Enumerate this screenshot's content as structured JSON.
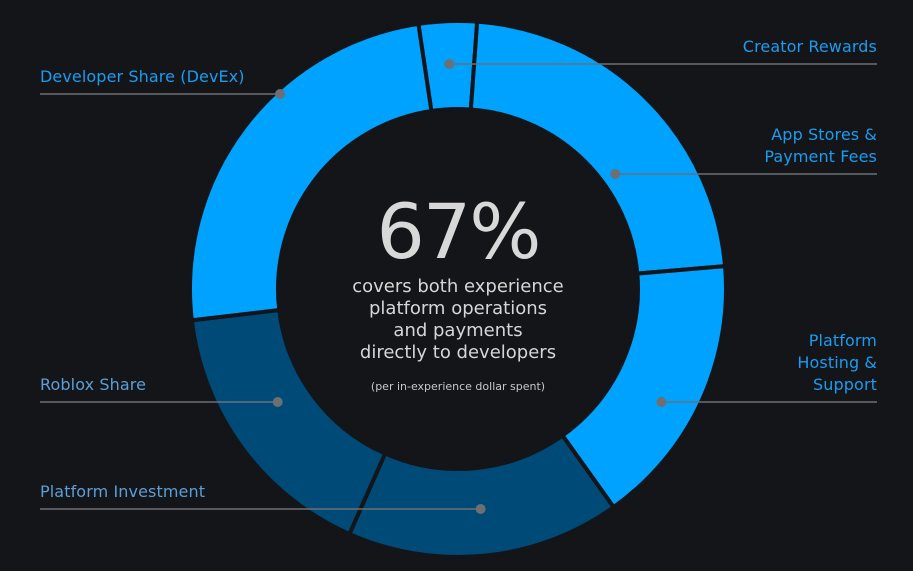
{
  "chart_data": {
    "type": "pie",
    "variant": "donut",
    "slices": [
      {
        "label": "Creator Rewards",
        "value": 3.5,
        "color": "#00a2ff",
        "label_side": "right"
      },
      {
        "label": "App Stores &\nPayment Fees",
        "value": 22.5,
        "color": "#00a2ff",
        "label_side": "right"
      },
      {
        "label": "Platform\nHosting &\nSupport",
        "value": 16.5,
        "color": "#00a2ff",
        "label_side": "right"
      },
      {
        "label": "Platform Investment",
        "value": 16.5,
        "color": "#004a78",
        "label_side": "left"
      },
      {
        "label": "Roblox Share",
        "value": 16.5,
        "color": "#004a78",
        "label_side": "left"
      },
      {
        "label": "Developer Share (DevEx)",
        "value": 24.5,
        "color": "#00a2ff",
        "label_side": "left"
      }
    ],
    "center": {
      "value": "67%",
      "description": "covers both experience\nplatform operations\nand payments\ndirectly to developers",
      "note": "(per in-experience dollar spent)"
    },
    "colors": {
      "bright": "#00a2ff",
      "dark": "#004a78",
      "background": "#131519",
      "bright_label": "#1a9cf0",
      "dark_label": "#5b9fd6",
      "leader": "#6d6f72"
    }
  }
}
